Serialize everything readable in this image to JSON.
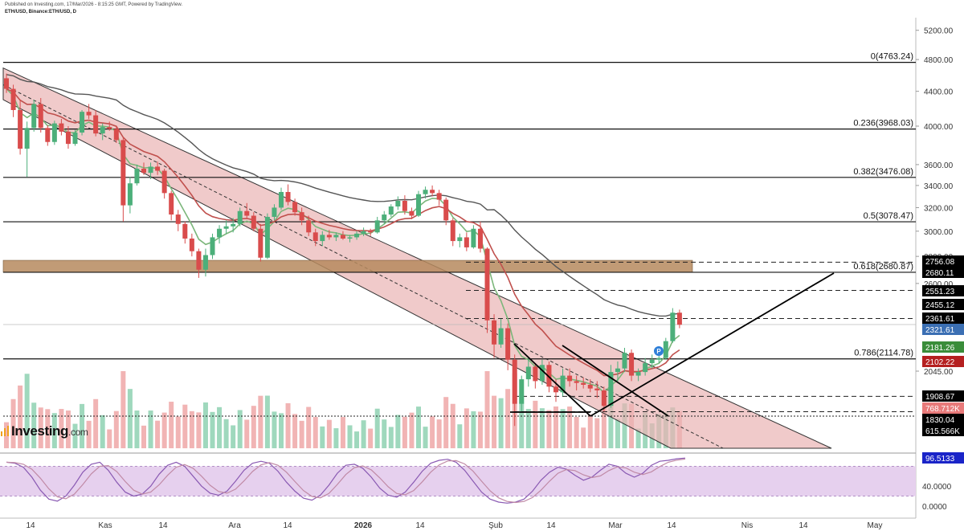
{
  "header": {
    "line1": "Published on Investing.com, 17/Mar/2026 - 8:15:25 GMT, Powered by TradingView.",
    "line2": "ETH/USD, Binance:ETH/USD, D"
  },
  "brand": {
    "name": "Investing",
    "suffix": ".com"
  },
  "colors": {
    "channel_fill": "#e9b3b3",
    "zone_fill": "#b68a5e",
    "bull": "#4caf7a",
    "bear": "#d94c4c",
    "ema_fast": "#7bb67a",
    "ema_slow": "#c0504d",
    "sma_long": "#555555",
    "volume_bull": "#9fd8bd",
    "volume_bear": "#f1b4b4",
    "stoch_band": "#e6d0ee",
    "stoch_k": "#8a5ab3",
    "stoch_d": "#c08aa6",
    "current_price_tag": "#3b6fb3",
    "tag_green": "#3a8d3a",
    "tag_red": "#b52020",
    "tag_black": "#000000",
    "tag_volume": "#e87a7a",
    "tag_stoch": "#1a24c8"
  },
  "chart_data": {
    "type": "candlestick",
    "symbol": "ETH/USD",
    "exchange": "Binance",
    "timeframe": "D",
    "price_axis": {
      "scale": "log",
      "ticks": [
        5200,
        4800,
        4400,
        4000,
        3600,
        3400,
        3200,
        3000,
        2800,
        2600,
        2045
      ]
    },
    "x_axis": {
      "ticks": [
        "14",
        "Kas",
        "14",
        "Ara",
        "14",
        "2026",
        "14",
        "Şub",
        "14",
        "Mar",
        "14",
        "Nis",
        "14",
        "May"
      ]
    },
    "fibonacci": [
      {
        "label": "0(4763.24)",
        "value": 4763.24
      },
      {
        "label": "0.236(3968.03)",
        "value": 3968.03
      },
      {
        "label": "0.382(3476.08)",
        "value": 3476.08
      },
      {
        "label": "0.5(3078.47)",
        "value": 3078.47
      },
      {
        "label": "0.618(2680.87)",
        "value": 2680.87
      },
      {
        "label": "0.786(2114.78)",
        "value": 2114.78
      }
    ],
    "price_tags": [
      {
        "label": "2756.08",
        "value": 2756.08,
        "style": "black"
      },
      {
        "label": "2680.11",
        "value": 2680.11,
        "style": "black"
      },
      {
        "label": "2551.23",
        "value": 2551.23,
        "style": "black"
      },
      {
        "label": "2455.12",
        "value": 2455.12,
        "style": "black"
      },
      {
        "label": "2361.61",
        "value": 2361.61,
        "style": "black"
      },
      {
        "label": "2321.61",
        "value": 2321.61,
        "style": "current"
      },
      {
        "label": "2181.26",
        "value": 2181.26,
        "style": "green"
      },
      {
        "label": "2102.22",
        "value": 2102.22,
        "style": "red"
      },
      {
        "label": "1908.67",
        "value": 1908.67,
        "style": "black"
      },
      {
        "label": "1830.04",
        "value": 1830.04,
        "style": "black"
      }
    ],
    "dashed_levels": [
      2756.08,
      2551.23,
      2361.61,
      1908.67,
      1830.04
    ],
    "volume": {
      "tags": [
        {
          "label": "768.712K",
          "style": "volume"
        },
        {
          "label": "615.566K",
          "style": "black"
        }
      ]
    },
    "stochastic": {
      "range": [
        0,
        100
      ],
      "band": [
        20,
        80
      ],
      "ticks": [
        40,
        0
      ],
      "tick_labels": [
        "40.0000",
        "0.0000"
      ],
      "tag": "96.5133",
      "k": [
        88,
        86,
        78,
        58,
        32,
        14,
        10,
        20,
        42,
        68,
        84,
        88,
        72,
        48,
        28,
        20,
        24,
        40,
        64,
        82,
        88,
        80,
        60,
        40,
        26,
        22,
        30,
        50,
        72,
        86,
        90,
        86,
        70,
        48,
        30,
        16,
        12,
        22,
        42,
        66,
        82,
        84,
        76,
        58,
        36,
        22,
        18,
        28,
        48,
        70,
        86,
        92,
        94,
        88,
        72,
        50,
        28,
        14,
        8,
        6,
        8,
        14,
        30,
        52,
        68,
        78,
        74,
        62,
        52,
        58,
        72,
        84,
        80,
        66,
        58,
        66,
        82,
        90,
        92,
        95,
        96.5
      ]
    },
    "candles": [
      [
        4560,
        4620,
        4380,
        4430
      ],
      [
        4430,
        4480,
        4100,
        4180
      ],
      [
        4180,
        4300,
        3700,
        3760
      ],
      [
        3760,
        4050,
        3480,
        3980
      ],
      [
        3980,
        4300,
        3940,
        4250
      ],
      [
        4250,
        4320,
        3930,
        3980
      ],
      [
        3980,
        4010,
        3790,
        3830
      ],
      [
        3830,
        4060,
        3800,
        4030
      ],
      [
        4030,
        4080,
        3900,
        3940
      ],
      [
        3940,
        4000,
        3760,
        3810
      ],
      [
        3810,
        3960,
        3790,
        3930
      ],
      [
        3930,
        4180,
        3900,
        4160
      ],
      [
        4160,
        4250,
        4080,
        4120
      ],
      [
        4120,
        4180,
        3890,
        3920
      ],
      [
        3920,
        4030,
        3850,
        3990
      ],
      [
        3990,
        4050,
        3950,
        3970
      ],
      [
        3970,
        4000,
        3820,
        3850
      ],
      [
        3850,
        3880,
        3080,
        3220
      ],
      [
        3220,
        3480,
        3150,
        3420
      ],
      [
        3420,
        3600,
        3400,
        3560
      ],
      [
        3560,
        3620,
        3500,
        3520
      ],
      [
        3520,
        3620,
        3460,
        3580
      ],
      [
        3580,
        3630,
        3500,
        3540
      ],
      [
        3540,
        3560,
        3280,
        3330
      ],
      [
        3330,
        3350,
        3090,
        3140
      ],
      [
        3140,
        3180,
        3000,
        3060
      ],
      [
        3060,
        3080,
        2900,
        2940
      ],
      [
        2940,
        2980,
        2800,
        2840
      ],
      [
        2840,
        2860,
        2640,
        2700
      ],
      [
        2700,
        2860,
        2650,
        2810
      ],
      [
        2810,
        2980,
        2780,
        2950
      ],
      [
        2950,
        3050,
        2900,
        3020
      ],
      [
        3020,
        3090,
        2980,
        3040
      ],
      [
        3040,
        3110,
        2990,
        3060
      ],
      [
        3060,
        3200,
        3040,
        3170
      ],
      [
        3170,
        3240,
        3100,
        3130
      ],
      [
        3130,
        3160,
        3000,
        3020
      ],
      [
        3020,
        3060,
        2760,
        2790
      ],
      [
        2790,
        3150,
        2780,
        3120
      ],
      [
        3120,
        3230,
        3090,
        3200
      ],
      [
        3200,
        3380,
        3180,
        3340
      ],
      [
        3340,
        3410,
        3220,
        3250
      ],
      [
        3250,
        3280,
        3130,
        3160
      ],
      [
        3160,
        3200,
        3050,
        3090
      ],
      [
        3090,
        3130,
        2960,
        2990
      ],
      [
        2990,
        3020,
        2880,
        2920
      ],
      [
        2920,
        3000,
        2880,
        2970
      ],
      [
        2970,
        3010,
        2930,
        2950
      ],
      [
        2950,
        2990,
        2920,
        2970
      ],
      [
        2970,
        3000,
        2930,
        2940
      ],
      [
        2940,
        2970,
        2910,
        2950
      ],
      [
        2950,
        3000,
        2930,
        2980
      ],
      [
        2980,
        3030,
        2960,
        3000
      ],
      [
        3000,
        3020,
        2960,
        2990
      ],
      [
        2990,
        3120,
        2980,
        3090
      ],
      [
        3090,
        3170,
        3060,
        3140
      ],
      [
        3140,
        3230,
        3120,
        3210
      ],
      [
        3210,
        3300,
        3180,
        3260
      ],
      [
        3260,
        3310,
        3140,
        3170
      ],
      [
        3170,
        3200,
        3100,
        3130
      ],
      [
        3130,
        3350,
        3120,
        3320
      ],
      [
        3320,
        3390,
        3280,
        3360
      ],
      [
        3360,
        3400,
        3300,
        3330
      ],
      [
        3330,
        3360,
        3220,
        3270
      ],
      [
        3270,
        3290,
        3050,
        3090
      ],
      [
        3090,
        3110,
        2880,
        2920
      ],
      [
        2920,
        2980,
        2870,
        2950
      ],
      [
        2950,
        2990,
        2840,
        2870
      ],
      [
        2870,
        3050,
        2860,
        3020
      ],
      [
        3020,
        3080,
        2830,
        2860
      ],
      [
        2860,
        2870,
        2270,
        2350
      ],
      [
        2350,
        2390,
        2120,
        2200
      ],
      [
        2200,
        2360,
        2180,
        2300
      ],
      [
        2300,
        2330,
        2050,
        2110
      ],
      [
        2110,
        2140,
        1760,
        1870
      ],
      [
        1870,
        2020,
        1830,
        2000
      ],
      [
        2000,
        2120,
        1960,
        2070
      ],
      [
        2070,
        2090,
        1950,
        1990
      ],
      [
        1990,
        2110,
        1970,
        2080
      ],
      [
        2080,
        2100,
        1930,
        1960
      ],
      [
        1960,
        2000,
        1880,
        1930
      ],
      [
        1930,
        2060,
        1910,
        2020
      ],
      [
        2020,
        2060,
        1960,
        1990
      ],
      [
        1990,
        2020,
        1940,
        1980
      ],
      [
        1980,
        2010,
        1950,
        1970
      ],
      [
        1970,
        2000,
        1930,
        1950
      ],
      [
        1950,
        1990,
        1900,
        1940
      ],
      [
        1940,
        1960,
        1830,
        1860
      ],
      [
        1860,
        2080,
        1850,
        2040
      ],
      [
        2040,
        2100,
        1990,
        2060
      ],
      [
        2060,
        2180,
        2040,
        2150
      ],
      [
        2150,
        2170,
        1990,
        2020
      ],
      [
        2020,
        2060,
        1990,
        2040
      ],
      [
        2040,
        2120,
        2020,
        2090
      ],
      [
        2090,
        2140,
        2060,
        2110
      ],
      [
        2110,
        2160,
        2090,
        2120
      ],
      [
        2120,
        2240,
        2110,
        2220
      ],
      [
        2220,
        2430,
        2210,
        2400
      ],
      [
        2400,
        2420,
        2300,
        2322
      ]
    ]
  }
}
